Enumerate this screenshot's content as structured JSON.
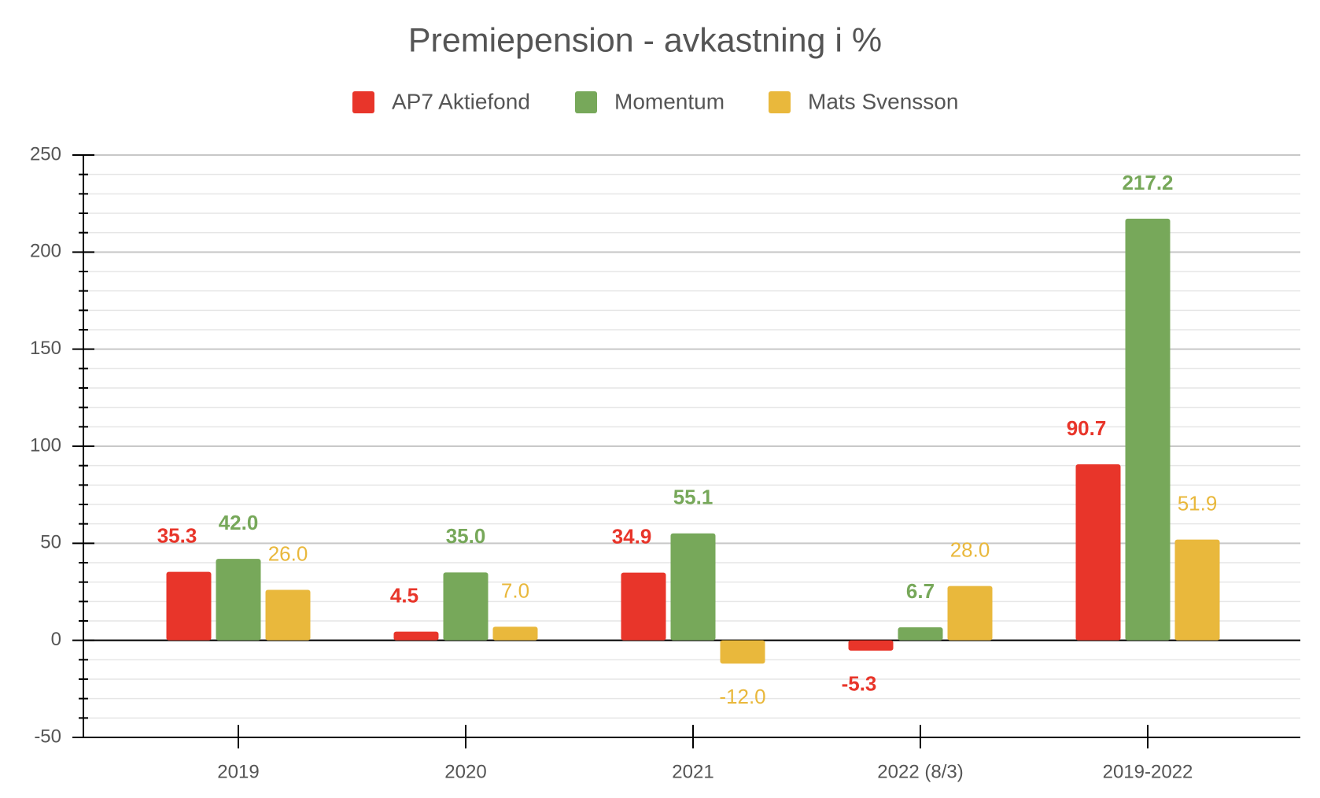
{
  "chart_data": {
    "type": "bar",
    "title": "Premiepension - avkastning i %",
    "categories": [
      "2019",
      "2020",
      "2021",
      "2022 (8/3)",
      "2019-2022"
    ],
    "series": [
      {
        "name": "AP7 Aktiefond",
        "color": "#e8352a",
        "values": [
          35.3,
          4.5,
          34.9,
          -5.3,
          90.7
        ],
        "value_labels": [
          "35.3",
          "4.5",
          "34.9",
          "-5.3",
          "90.7"
        ]
      },
      {
        "name": "Momentum",
        "color": "#77a85a",
        "values": [
          42,
          35,
          55.1,
          6.7,
          217.2
        ],
        "value_labels": [
          "42.0",
          "35.0",
          "55.1",
          "6.7",
          "217.2"
        ]
      },
      {
        "name": "Mats Svensson",
        "color": "#e9b83c",
        "values": [
          26,
          7,
          -12,
          28,
          51.9
        ],
        "value_labels": [
          "26.0",
          "7.0",
          "-12.0",
          "28.0",
          "51.9"
        ]
      }
    ],
    "ylim": [
      -50,
      250
    ],
    "yticks": [
      -50,
      0,
      50,
      100,
      150,
      200,
      250
    ],
    "yminor": [
      -40,
      -30,
      -20,
      -10,
      10,
      20,
      30,
      40,
      60,
      70,
      80,
      90,
      110,
      120,
      130,
      140,
      160,
      170,
      180,
      190,
      210,
      220,
      230,
      240
    ],
    "grid": true,
    "legend": "top"
  }
}
